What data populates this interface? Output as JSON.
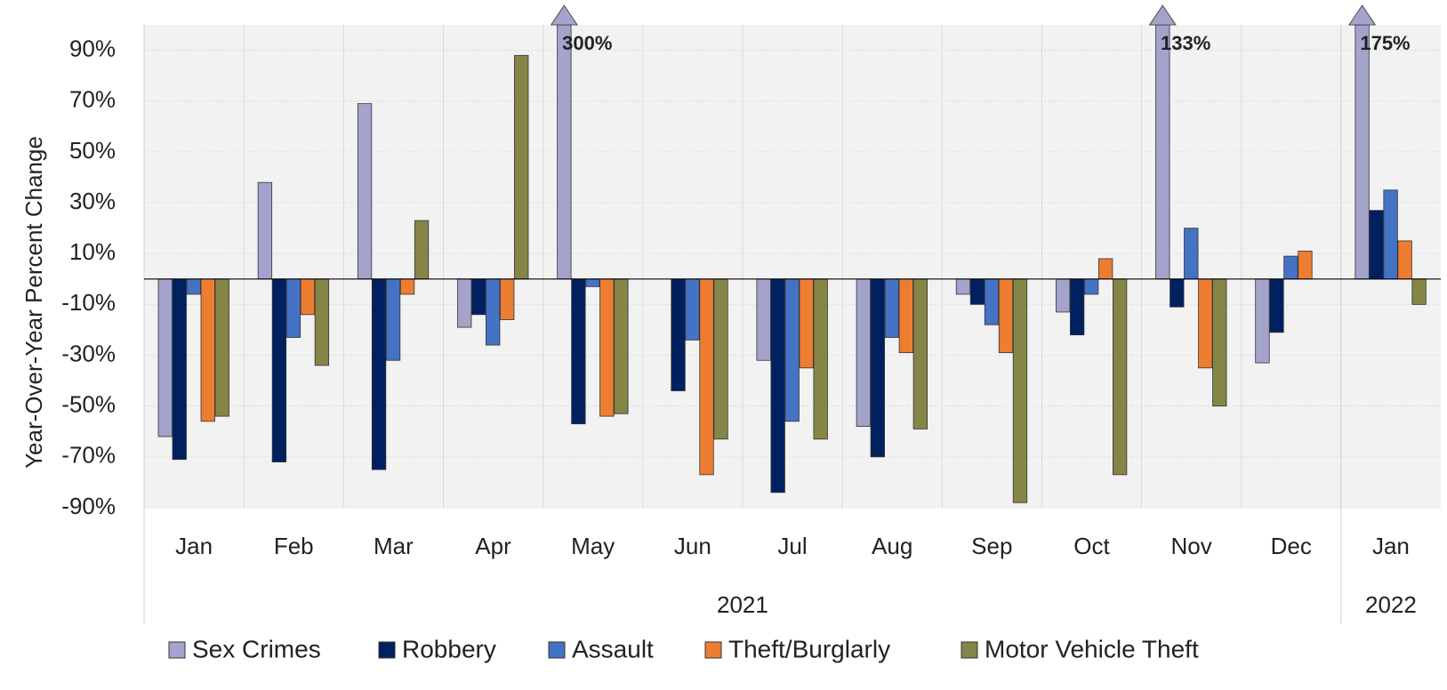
{
  "chart_data": {
    "type": "bar",
    "y_label": "Year-Over-Year Percent Change",
    "categories": [
      "Jan",
      "Feb",
      "Mar",
      "Apr",
      "May",
      "Jun",
      "Jul",
      "Aug",
      "Sep",
      "Oct",
      "Nov",
      "Dec",
      "Jan"
    ],
    "category_groups": [
      "2021",
      "2021",
      "2021",
      "2021",
      "2021",
      "2021",
      "2021",
      "2021",
      "2021",
      "2021",
      "2021",
      "2021",
      "2022"
    ],
    "series": [
      {
        "name": "Sex Crimes",
        "color": "#a3a3cc",
        "values": [
          -62,
          38,
          69,
          -19,
          300,
          0,
          -32,
          -58,
          -6,
          -13,
          133,
          -33,
          175
        ],
        "value_labels": [
          null,
          null,
          null,
          null,
          "300%",
          null,
          null,
          null,
          null,
          null,
          "133%",
          null,
          "175%"
        ]
      },
      {
        "name": "Robbery",
        "color": "#002060",
        "values": [
          -71,
          -72,
          -75,
          -14,
          -57,
          -44,
          -84,
          -70,
          -10,
          -22,
          -11,
          -21,
          27
        ]
      },
      {
        "name": "Assault",
        "color": "#4472c4",
        "values": [
          -6,
          -23,
          -32,
          -26,
          -3,
          -24,
          -56,
          -23,
          -18,
          -6,
          20,
          9,
          35
        ]
      },
      {
        "name": "Theft/Burglarly",
        "color": "#ed7d31",
        "values": [
          -56,
          -14,
          -6,
          -16,
          -54,
          -77,
          -35,
          -29,
          -29,
          8,
          -35,
          11,
          15
        ]
      },
      {
        "name": "Motor Vehicle Theft",
        "color": "#858548",
        "values": [
          -54,
          -34,
          23,
          88,
          -53,
          -63,
          -63,
          -59,
          -88,
          -77,
          -50,
          0,
          -10
        ]
      }
    ],
    "ylim": [
      -90,
      100
    ],
    "yticks": [
      {
        "value": -90,
        "label": "-90%"
      },
      {
        "value": -70,
        "label": "-70%"
      },
      {
        "value": -50,
        "label": "-50%"
      },
      {
        "value": -30,
        "label": "-30%"
      },
      {
        "value": -10,
        "label": "-10%"
      },
      {
        "value": 10,
        "label": "10%"
      },
      {
        "value": 30,
        "label": "30%"
      },
      {
        "value": 50,
        "label": "50%"
      },
      {
        "value": 70,
        "label": "70%"
      },
      {
        "value": 90,
        "label": "90%"
      }
    ],
    "grid": true
  }
}
